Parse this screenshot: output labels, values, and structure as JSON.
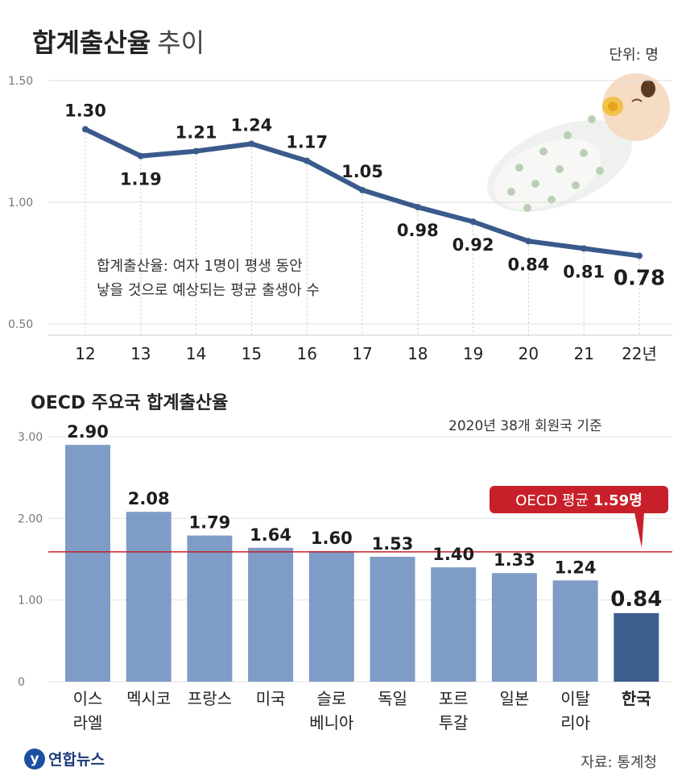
{
  "title_main": "합계출산율",
  "title_sub": "추이",
  "unit_label": "단위: 명",
  "definition_line1": "합계출산율: 여자 1명이 평생 동안",
  "definition_line2": "낳을 것으로 예상되는 평균 출생아 수",
  "oecd_title": "OECD 주요국 합계출산율",
  "oecd_note": "2020년 38개 회원국 기준",
  "avg_label_prefix": "OECD 평균 ",
  "avg_label_value": "1.59명",
  "source": "자료: 통계청",
  "logo_text": "연합뉴스",
  "colors": {
    "line": "#3a5a8c",
    "bar": "#7e9cc6",
    "bar_highlight": "#3d5f8e",
    "avg": "#c8202a"
  },
  "chart_data": [
    {
      "type": "line",
      "title": "합계출산율 추이",
      "x": [
        "12",
        "13",
        "14",
        "15",
        "16",
        "17",
        "18",
        "19",
        "20",
        "21",
        "22년"
      ],
      "values": [
        1.3,
        1.19,
        1.21,
        1.24,
        1.17,
        1.05,
        0.98,
        0.92,
        0.84,
        0.81,
        0.78
      ],
      "labels": [
        "1.30",
        "1.19",
        "1.21",
        "1.24",
        "1.17",
        "1.05",
        "0.98",
        "0.92",
        "0.84",
        "0.81",
        "0.78"
      ],
      "yticks": [
        "1.50",
        "1.00",
        "0.50"
      ],
      "ylim": [
        0.5,
        1.5
      ]
    },
    {
      "type": "bar",
      "title": "OECD 주요국 합계출산율",
      "categories": [
        [
          "이스",
          "라엘"
        ],
        [
          "멕시코"
        ],
        [
          "프랑스"
        ],
        [
          "미국"
        ],
        [
          "슬로",
          "베니아"
        ],
        [
          "독일"
        ],
        [
          "포르",
          "투갈"
        ],
        [
          "일본"
        ],
        [
          "이탈",
          "리아"
        ],
        [
          "한국"
        ]
      ],
      "values": [
        2.9,
        2.08,
        1.79,
        1.64,
        1.6,
        1.53,
        1.4,
        1.33,
        1.24,
        0.84
      ],
      "labels": [
        "2.90",
        "2.08",
        "1.79",
        "1.64",
        "1.60",
        "1.53",
        "1.40",
        "1.33",
        "1.24",
        "0.84"
      ],
      "highlight_index": 9,
      "average": 1.59,
      "yticks": [
        "3.00",
        "2.00",
        "1.00",
        "0"
      ],
      "ylim": [
        0,
        3.0
      ]
    }
  ]
}
